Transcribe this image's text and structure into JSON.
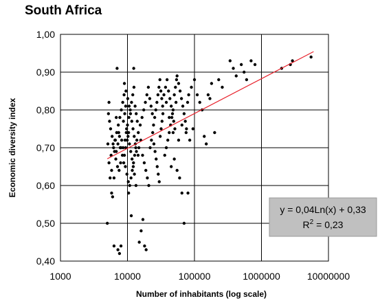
{
  "chart_data": {
    "type": "scatter",
    "title": "South Africa",
    "xlabel": "Number of inhabitants (log scale)",
    "ylabel": "Economic diversity index",
    "x_scale": "log",
    "xlim": [
      1000,
      10000000
    ],
    "ylim": [
      0.4,
      1.0
    ],
    "x_ticks": [
      "1000",
      "10000",
      "100000",
      "1000000",
      "10000000"
    ],
    "y_ticks": [
      "0,40",
      "0,50",
      "0,60",
      "0,70",
      "0,80",
      "0,90",
      "1,00"
    ],
    "grid": true,
    "colors": {
      "points": "#000000",
      "trendline": "#e8202a",
      "equation_box": "#c0c0c0"
    },
    "trendline": {
      "a": 0.04,
      "b": 0.33,
      "equation": "y = 0,04Ln(x) + 0,33",
      "r2_label": "R",
      "r2_exp": "2",
      "r2_value": " = 0,23",
      "x_range": [
        5000,
        6000000
      ]
    },
    "points": [
      [
        5000,
        0.5
      ],
      [
        5300,
        0.82
      ],
      [
        5500,
        0.62
      ],
      [
        5800,
        0.58
      ],
      [
        6000,
        0.57
      ],
      [
        6300,
        0.44
      ],
      [
        7000,
        0.91
      ],
      [
        7200,
        0.43
      ],
      [
        7600,
        0.42
      ],
      [
        8000,
        0.44
      ],
      [
        5200,
        0.79
      ],
      [
        5400,
        0.77
      ],
      [
        5600,
        0.75
      ],
      [
        5900,
        0.73
      ],
      [
        6100,
        0.71
      ],
      [
        6400,
        0.69
      ],
      [
        6700,
        0.67
      ],
      [
        7100,
        0.65
      ],
      [
        7500,
        0.64
      ],
      [
        7900,
        0.66
      ],
      [
        5100,
        0.71
      ],
      [
        5700,
        0.68
      ],
      [
        6200,
        0.7
      ],
      [
        6600,
        0.72
      ],
      [
        6900,
        0.74
      ],
      [
        7300,
        0.76
      ],
      [
        7700,
        0.78
      ],
      [
        8100,
        0.8
      ],
      [
        8500,
        0.82
      ],
      [
        8900,
        0.84
      ],
      [
        5300,
        0.66
      ],
      [
        5800,
        0.64
      ],
      [
        6300,
        0.62
      ],
      [
        6800,
        0.69
      ],
      [
        7200,
        0.71
      ],
      [
        7600,
        0.73
      ],
      [
        8000,
        0.7
      ],
      [
        8400,
        0.68
      ],
      [
        8800,
        0.66
      ],
      [
        9200,
        0.72
      ],
      [
        9600,
        0.74
      ],
      [
        10000,
        0.76
      ],
      [
        10500,
        0.78
      ],
      [
        11000,
        0.8
      ],
      [
        11500,
        0.82
      ],
      [
        12000,
        0.84
      ],
      [
        12500,
        0.86
      ],
      [
        13000,
        0.81
      ],
      [
        13500,
        0.79
      ],
      [
        14000,
        0.77
      ],
      [
        9300,
        0.65
      ],
      [
        9800,
        0.63
      ],
      [
        10300,
        0.61
      ],
      [
        10800,
        0.6
      ],
      [
        11300,
        0.62
      ],
      [
        11800,
        0.64
      ],
      [
        12300,
        0.66
      ],
      [
        12800,
        0.68
      ],
      [
        13300,
        0.7
      ],
      [
        13800,
        0.72
      ],
      [
        9000,
        0.87
      ],
      [
        9500,
        0.85
      ],
      [
        10100,
        0.83
      ],
      [
        10600,
        0.81
      ],
      [
        11100,
        0.79
      ],
      [
        11600,
        0.77
      ],
      [
        12100,
        0.75
      ],
      [
        12600,
        0.73
      ],
      [
        13100,
        0.71
      ],
      [
        13600,
        0.69
      ],
      [
        8700,
        0.77
      ],
      [
        9100,
        0.79
      ],
      [
        9400,
        0.81
      ],
      [
        9700,
        0.75
      ],
      [
        10200,
        0.73
      ],
      [
        10700,
        0.71
      ],
      [
        11200,
        0.69
      ],
      [
        11700,
        0.67
      ],
      [
        12200,
        0.65
      ],
      [
        12700,
        0.63
      ],
      [
        10400,
        0.58
      ],
      [
        11400,
        0.52
      ],
      [
        12400,
        0.91
      ],
      [
        13400,
        0.6
      ],
      [
        14400,
        0.68
      ],
      [
        15000,
        0.45
      ],
      [
        16000,
        0.48
      ],
      [
        17000,
        0.51
      ],
      [
        18000,
        0.44
      ],
      [
        19000,
        0.43
      ],
      [
        14500,
        0.74
      ],
      [
        15500,
        0.76
      ],
      [
        16500,
        0.78
      ],
      [
        17500,
        0.8
      ],
      [
        18500,
        0.82
      ],
      [
        19500,
        0.84
      ],
      [
        20500,
        0.86
      ],
      [
        21500,
        0.83
      ],
      [
        22500,
        0.81
      ],
      [
        23500,
        0.79
      ],
      [
        14800,
        0.7
      ],
      [
        15800,
        0.72
      ],
      [
        16800,
        0.68
      ],
      [
        17800,
        0.66
      ],
      [
        18800,
        0.64
      ],
      [
        19800,
        0.62
      ],
      [
        20800,
        0.6
      ],
      [
        21800,
        0.7
      ],
      [
        22800,
        0.72
      ],
      [
        23800,
        0.74
      ],
      [
        24500,
        0.76
      ],
      [
        25500,
        0.78
      ],
      [
        26500,
        0.8
      ],
      [
        27500,
        0.82
      ],
      [
        28500,
        0.84
      ],
      [
        29500,
        0.86
      ],
      [
        30500,
        0.88
      ],
      [
        31500,
        0.85
      ],
      [
        32500,
        0.83
      ],
      [
        33500,
        0.81
      ],
      [
        24800,
        0.71
      ],
      [
        25800,
        0.69
      ],
      [
        26800,
        0.67
      ],
      [
        27800,
        0.65
      ],
      [
        28800,
        0.63
      ],
      [
        29800,
        0.61
      ],
      [
        30800,
        0.73
      ],
      [
        31800,
        0.75
      ],
      [
        32800,
        0.77
      ],
      [
        33800,
        0.79
      ],
      [
        35000,
        0.84
      ],
      [
        37000,
        0.86
      ],
      [
        39000,
        0.88
      ],
      [
        41000,
        0.85
      ],
      [
        43000,
        0.83
      ],
      [
        45000,
        0.81
      ],
      [
        47000,
        0.79
      ],
      [
        49000,
        0.77
      ],
      [
        51000,
        0.75
      ],
      [
        53000,
        0.82
      ],
      [
        36000,
        0.68
      ],
      [
        38000,
        0.7
      ],
      [
        40000,
        0.72
      ],
      [
        42000,
        0.74
      ],
      [
        44000,
        0.76
      ],
      [
        46000,
        0.78
      ],
      [
        48000,
        0.8
      ],
      [
        50000,
        0.84
      ],
      [
        52000,
        0.86
      ],
      [
        54000,
        0.88
      ],
      [
        55000,
        0.89
      ],
      [
        58000,
        0.87
      ],
      [
        61000,
        0.85
      ],
      [
        64000,
        0.83
      ],
      [
        67000,
        0.81
      ],
      [
        70000,
        0.79
      ],
      [
        73000,
        0.77
      ],
      [
        76000,
        0.75
      ],
      [
        79000,
        0.82
      ],
      [
        82000,
        0.84
      ],
      [
        45000,
        0.65
      ],
      [
        50000,
        0.67
      ],
      [
        55000,
        0.64
      ],
      [
        60000,
        0.62
      ],
      [
        65000,
        0.58
      ],
      [
        70000,
        0.5
      ],
      [
        80000,
        0.58
      ],
      [
        90000,
        0.86
      ],
      [
        100000,
        0.88
      ],
      [
        110000,
        0.84
      ],
      [
        120000,
        0.82
      ],
      [
        130000,
        0.8
      ],
      [
        140000,
        0.73
      ],
      [
        150000,
        0.71
      ],
      [
        160000,
        0.84
      ],
      [
        170000,
        0.83
      ],
      [
        180000,
        0.87
      ],
      [
        200000,
        0.74
      ],
      [
        230000,
        0.88
      ],
      [
        260000,
        0.86
      ],
      [
        340000,
        0.93
      ],
      [
        380000,
        0.91
      ],
      [
        420000,
        0.89
      ],
      [
        500000,
        0.92
      ],
      [
        550000,
        0.9
      ],
      [
        600000,
        0.88
      ],
      [
        700000,
        0.93
      ],
      [
        800000,
        0.92
      ],
      [
        2000000,
        0.91
      ],
      [
        2700000,
        0.92
      ],
      [
        2900000,
        0.93
      ],
      [
        5500000,
        0.94
      ],
      [
        95000,
        0.75
      ],
      [
        85000,
        0.72
      ],
      [
        75000,
        0.74
      ],
      [
        65000,
        0.76
      ],
      [
        58000,
        0.72
      ],
      [
        48000,
        0.74
      ],
      [
        42000,
        0.78
      ],
      [
        38000,
        0.82
      ],
      [
        6500,
        0.72
      ],
      [
        6800,
        0.78
      ],
      [
        7400,
        0.74
      ],
      [
        7800,
        0.7
      ],
      [
        8200,
        0.72
      ],
      [
        8600,
        0.7
      ],
      [
        9000,
        0.68
      ],
      [
        9400,
        0.7
      ],
      [
        9900,
        0.72
      ],
      [
        10400,
        0.74
      ]
    ]
  }
}
